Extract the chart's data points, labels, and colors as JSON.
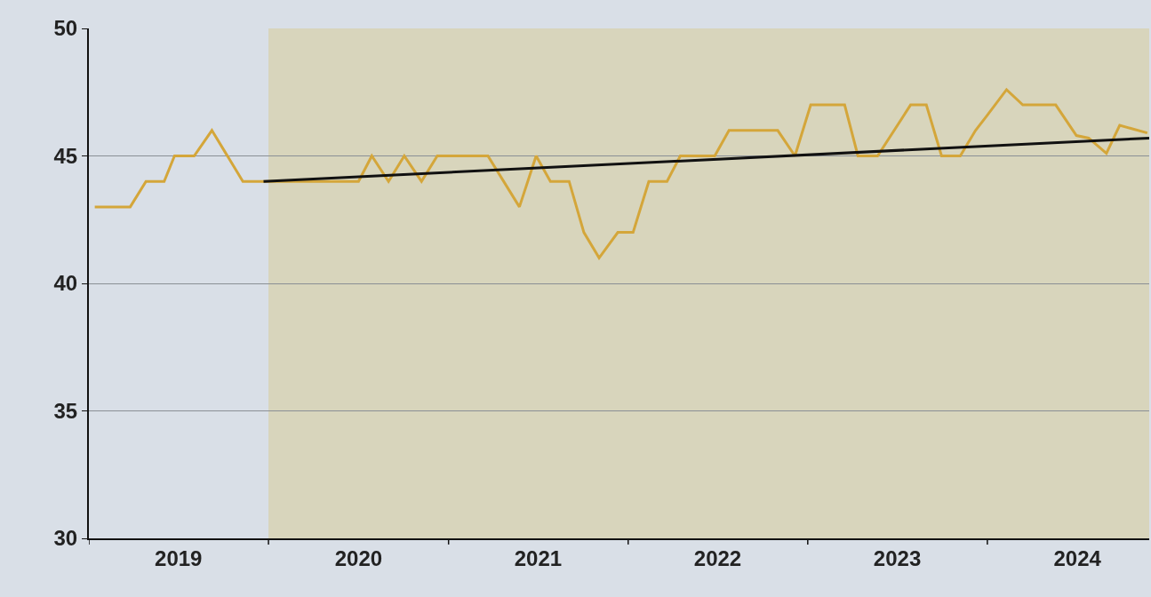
{
  "chart_data": {
    "type": "line",
    "x": [
      "2019-01-13",
      "2019-03-26",
      "2019-04-27",
      "2019-06-03",
      "2019-06-24",
      "2019-08-03",
      "2019-09-08",
      "2019-11-10",
      "2019-12-22",
      "2020-07-02",
      "2020-07-29",
      "2020-09-01",
      "2020-10-03",
      "2020-11-07",
      "2020-12-09",
      "2021-03-22",
      "2021-05-25",
      "2021-06-28",
      "2021-07-27",
      "2021-09-03",
      "2021-10-03",
      "2021-11-03",
      "2021-12-11",
      "2022-01-11",
      "2022-02-12",
      "2022-03-21",
      "2022-04-17",
      "2022-06-26",
      "2022-07-25",
      "2022-11-01",
      "2022-12-06",
      "2023-01-07",
      "2023-03-17",
      "2023-04-13",
      "2023-05-23",
      "2023-07-29",
      "2023-08-30",
      "2023-09-30",
      "2023-11-07",
      "2023-12-08",
      "2024-01-01",
      "2024-02-09",
      "2024-03-13",
      "2024-05-19",
      "2024-06-30",
      "2024-07-25",
      "2024-08-30",
      "2024-09-26",
      "2024-11-21"
    ],
    "series": [
      {
        "color": "#d4a63a",
        "values": [
          43,
          43,
          44,
          44,
          45,
          45,
          46,
          44,
          44,
          44,
          45,
          44,
          45,
          44,
          45,
          45,
          43,
          45,
          44,
          44,
          42,
          41,
          42,
          42,
          44,
          44,
          45,
          45,
          46,
          46,
          45,
          47,
          47,
          45,
          45,
          47,
          47,
          45,
          45,
          46,
          46.6,
          47.6,
          47,
          47,
          45.8,
          45.7,
          45.1,
          46.2,
          45.9
        ]
      },
      {
        "type": "line",
        "color": "#111111",
        "x": [
          "2019-12-22",
          "2024-11-25"
        ],
        "values": [
          44,
          45.7
        ]
      }
    ],
    "xlim": [
      "2019-01-01",
      "2024-11-25"
    ],
    "xticks": [
      {
        "value": "2019-01-01",
        "label": null
      },
      {
        "value": "2019-07-02",
        "label": "2019"
      },
      {
        "value": "2020-01-01",
        "label": null
      },
      {
        "value": "2020-07-02",
        "label": "2020"
      },
      {
        "value": "2021-01-01",
        "label": null
      },
      {
        "value": "2021-07-02",
        "label": "2021"
      },
      {
        "value": "2022-01-01",
        "label": null
      },
      {
        "value": "2022-07-02",
        "label": "2022"
      },
      {
        "value": "2023-01-01",
        "label": null
      },
      {
        "value": "2023-07-02",
        "label": "2023"
      },
      {
        "value": "2024-01-01",
        "label": null
      },
      {
        "value": "2024-07-02",
        "label": "2024"
      }
    ],
    "ylim": [
      30,
      50
    ],
    "yticks": [
      30,
      35,
      40,
      45,
      50
    ],
    "bands": [
      {
        "axis": "x",
        "from": "2020-01-01",
        "to": "2024-11-25",
        "color": "#d8d5bc"
      }
    ],
    "grid": "y",
    "marker": "none",
    "line_style": "solid"
  }
}
